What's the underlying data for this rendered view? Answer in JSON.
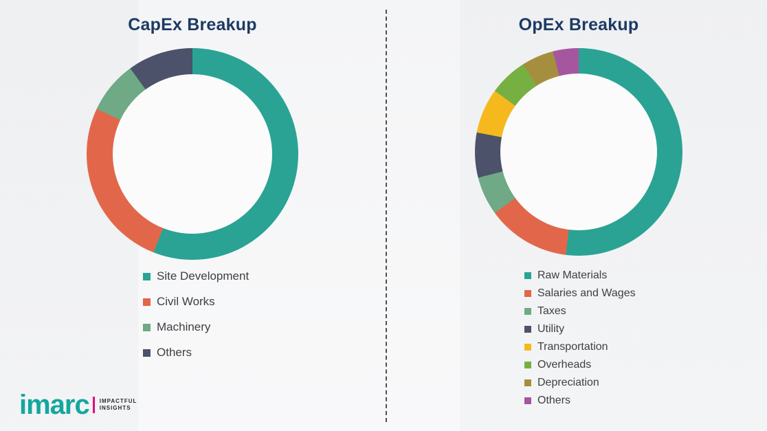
{
  "theme": {
    "background": "#fbfbfc",
    "title_color": "#1d3a63",
    "legend_text_color": "#3d3f42",
    "divider_color": "#4e4e4e"
  },
  "chart_data": [
    {
      "type": "pie",
      "variant": "donut",
      "title": "CapEx Breakup",
      "legend_position": "bottom",
      "start_angle_deg": 0,
      "direction": "clockwise",
      "categories": [
        "Site Development",
        "Civil Works",
        "Machinery",
        "Others"
      ],
      "values": [
        56,
        26,
        8,
        10
      ],
      "values_note": "percent, estimated from arc lengths (no numeric labels shown)",
      "colors": [
        "#2aa394",
        "#e2674a",
        "#6fa986",
        "#4b5269"
      ]
    },
    {
      "type": "pie",
      "variant": "donut",
      "title": "OpEx Breakup",
      "legend_position": "bottom",
      "start_angle_deg": 0,
      "direction": "clockwise",
      "categories": [
        "Raw Materials",
        "Salaries and Wages",
        "Taxes",
        "Utility",
        "Transportation",
        "Overheads",
        "Depreciation",
        "Others"
      ],
      "values": [
        52,
        13,
        6,
        7,
        7,
        6,
        5,
        4
      ],
      "values_note": "percent, estimated from arc lengths (no numeric labels shown)",
      "colors": [
        "#2aa394",
        "#e2674a",
        "#6fa986",
        "#4b5269",
        "#f5b91e",
        "#76b043",
        "#a58f3f",
        "#a6569f"
      ]
    }
  ],
  "logo": {
    "word": "imarc",
    "tagline_line1": "IMPACTFUL",
    "tagline_line2": "INSIGHTS",
    "word_color": "#13a79e",
    "accent_color": "#e5007e"
  }
}
